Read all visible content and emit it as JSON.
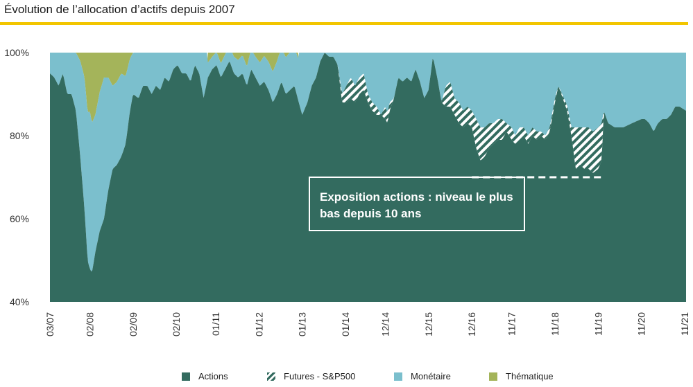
{
  "title": "Évolution de l’allocation d’actifs depuis 2007",
  "colors": {
    "accent_rule": "#f2c500",
    "actions": "#336b5f",
    "monetaire": "#7bbfcd",
    "thematique": "#a4b45a",
    "futures_stripe": "#336b5f",
    "annotation_line": "#ffffff"
  },
  "annotation": {
    "text": "Exposition actions : niveau le plus bas depuis 10 ans",
    "dashed_level": 70
  },
  "legend": [
    {
      "label": "Actions",
      "pattern": "solid",
      "color_key": "actions"
    },
    {
      "label": "Futures - S&P500",
      "pattern": "hatch",
      "color_key": "futures_stripe"
    },
    {
      "label": "Monétaire",
      "pattern": "solid",
      "color_key": "monetaire"
    },
    {
      "label": "Thématique",
      "pattern": "solid",
      "color_key": "thematique"
    }
  ],
  "chart_data": {
    "type": "area",
    "stacked": true,
    "title": "Évolution de l’allocation d’actifs depuis 2007",
    "ylim": [
      40,
      100
    ],
    "yticks": [
      "40%",
      "60%",
      "80%",
      "100%"
    ],
    "ytick_values": [
      40,
      60,
      80,
      100
    ],
    "xtick_labels": [
      "03/07",
      "02/08",
      "02/09",
      "02/10",
      "01/11",
      "01/12",
      "01/13",
      "01/14",
      "12/14",
      "12/15",
      "12/16",
      "11/17",
      "11/18",
      "11/19",
      "11/20",
      "11/21"
    ],
    "xtick_t": [
      0.25,
      1.17,
      2.17,
      3.17,
      4.08,
      5.08,
      6.08,
      7.08,
      8.0,
      9.0,
      10.0,
      10.92,
      11.92,
      12.92,
      13.92,
      14.92
    ],
    "t_range": [
      0.25,
      14.95
    ],
    "t_unit": "years since 2007",
    "grid": false,
    "legend_position": "bottom",
    "series": [
      {
        "name": "Actions",
        "points": [
          [
            0.25,
            95
          ],
          [
            0.35,
            94
          ],
          [
            0.45,
            92
          ],
          [
            0.55,
            95
          ],
          [
            0.65,
            90
          ],
          [
            0.75,
            90
          ],
          [
            0.85,
            86
          ],
          [
            0.95,
            75
          ],
          [
            1.05,
            62
          ],
          [
            1.12,
            50
          ],
          [
            1.17,
            48
          ],
          [
            1.22,
            47
          ],
          [
            1.3,
            52
          ],
          [
            1.4,
            57
          ],
          [
            1.5,
            60
          ],
          [
            1.6,
            67
          ],
          [
            1.7,
            72
          ],
          [
            1.8,
            73
          ],
          [
            1.9,
            75
          ],
          [
            2.0,
            78
          ],
          [
            2.1,
            86
          ],
          [
            2.17,
            90
          ],
          [
            2.3,
            89
          ],
          [
            2.4,
            92
          ],
          [
            2.5,
            92
          ],
          [
            2.6,
            90
          ],
          [
            2.7,
            92
          ],
          [
            2.8,
            91
          ],
          [
            2.9,
            94
          ],
          [
            3.0,
            93
          ],
          [
            3.1,
            96
          ],
          [
            3.2,
            97
          ],
          [
            3.3,
            95
          ],
          [
            3.4,
            95
          ],
          [
            3.5,
            93
          ],
          [
            3.6,
            97
          ],
          [
            3.7,
            95
          ],
          [
            3.8,
            89
          ],
          [
            3.9,
            94
          ],
          [
            4.0,
            96
          ],
          [
            4.1,
            97
          ],
          [
            4.2,
            94
          ],
          [
            4.3,
            96
          ],
          [
            4.4,
            98
          ],
          [
            4.5,
            95
          ],
          [
            4.6,
            94
          ],
          [
            4.7,
            95
          ],
          [
            4.8,
            92
          ],
          [
            4.9,
            96
          ],
          [
            5.0,
            94
          ],
          [
            5.1,
            92
          ],
          [
            5.2,
            93
          ],
          [
            5.3,
            91
          ],
          [
            5.4,
            88
          ],
          [
            5.5,
            90
          ],
          [
            5.6,
            93
          ],
          [
            5.7,
            90
          ],
          [
            5.8,
            91
          ],
          [
            5.9,
            92
          ],
          [
            6.0,
            88
          ],
          [
            6.08,
            85
          ],
          [
            6.2,
            88
          ],
          [
            6.3,
            92
          ],
          [
            6.4,
            94
          ],
          [
            6.5,
            98
          ],
          [
            6.6,
            100
          ],
          [
            6.7,
            99
          ],
          [
            6.8,
            99
          ],
          [
            6.9,
            97
          ],
          [
            7.0,
            88
          ],
          [
            7.1,
            88
          ],
          [
            7.2,
            89
          ],
          [
            7.3,
            88
          ],
          [
            7.4,
            90
          ],
          [
            7.5,
            91
          ],
          [
            7.6,
            88
          ],
          [
            7.7,
            86
          ],
          [
            7.8,
            85
          ],
          [
            7.9,
            85
          ],
          [
            8.0,
            84
          ],
          [
            8.05,
            83
          ],
          [
            8.1,
            86
          ],
          [
            8.2,
            89
          ],
          [
            8.3,
            94
          ],
          [
            8.4,
            93
          ],
          [
            8.5,
            94
          ],
          [
            8.6,
            93
          ],
          [
            8.7,
            96
          ],
          [
            8.8,
            93
          ],
          [
            8.9,
            89
          ],
          [
            9.0,
            91
          ],
          [
            9.1,
            99
          ],
          [
            9.2,
            94
          ],
          [
            9.3,
            88
          ],
          [
            9.4,
            87
          ],
          [
            9.5,
            87
          ],
          [
            9.6,
            85
          ],
          [
            9.7,
            83
          ],
          [
            9.8,
            82
          ],
          [
            9.9,
            83
          ],
          [
            10.0,
            82
          ],
          [
            10.1,
            77
          ],
          [
            10.2,
            74
          ],
          [
            10.3,
            75
          ],
          [
            10.4,
            77
          ],
          [
            10.5,
            78
          ],
          [
            10.6,
            79
          ],
          [
            10.7,
            79
          ],
          [
            10.8,
            81
          ],
          [
            10.92,
            79
          ],
          [
            11.0,
            78
          ],
          [
            11.1,
            79
          ],
          [
            11.2,
            80
          ],
          [
            11.3,
            78
          ],
          [
            11.4,
            80
          ],
          [
            11.5,
            79
          ],
          [
            11.6,
            80
          ],
          [
            11.7,
            79
          ],
          [
            11.8,
            81
          ],
          [
            11.92,
            88
          ],
          [
            12.0,
            92
          ],
          [
            12.1,
            89
          ],
          [
            12.2,
            86
          ],
          [
            12.3,
            80
          ],
          [
            12.4,
            72
          ],
          [
            12.5,
            73
          ],
          [
            12.6,
            72
          ],
          [
            12.7,
            72
          ],
          [
            12.8,
            71
          ],
          [
            12.92,
            72
          ],
          [
            13.0,
            74
          ],
          [
            13.05,
            86
          ],
          [
            13.15,
            83
          ],
          [
            13.3,
            82
          ],
          [
            13.5,
            82
          ],
          [
            13.7,
            83
          ],
          [
            13.92,
            84
          ],
          [
            14.0,
            84
          ],
          [
            14.1,
            83
          ],
          [
            14.2,
            81
          ],
          [
            14.3,
            83
          ],
          [
            14.4,
            84
          ],
          [
            14.5,
            84
          ],
          [
            14.6,
            85
          ],
          [
            14.7,
            87
          ],
          [
            14.8,
            87
          ],
          [
            14.95,
            86
          ]
        ]
      },
      {
        "name": "Futures - S&P500",
        "points": [
          [
            6.9,
            0
          ],
          [
            7.0,
            2
          ],
          [
            7.1,
            4
          ],
          [
            7.2,
            5
          ],
          [
            7.3,
            4
          ],
          [
            7.4,
            4
          ],
          [
            7.5,
            4
          ],
          [
            7.6,
            2
          ],
          [
            7.7,
            2
          ],
          [
            7.8,
            2
          ],
          [
            7.9,
            0
          ],
          [
            8.0,
            3
          ],
          [
            8.1,
            2
          ],
          [
            8.2,
            0
          ],
          [
            9.3,
            0
          ],
          [
            9.4,
            5
          ],
          [
            9.5,
            6
          ],
          [
            9.6,
            4
          ],
          [
            9.7,
            5
          ],
          [
            9.8,
            4
          ],
          [
            9.9,
            4
          ],
          [
            10.0,
            4
          ],
          [
            10.1,
            7
          ],
          [
            10.2,
            8
          ],
          [
            10.3,
            7
          ],
          [
            10.4,
            6
          ],
          [
            10.5,
            5
          ],
          [
            10.6,
            5
          ],
          [
            10.7,
            5
          ],
          [
            10.8,
            2
          ],
          [
            10.92,
            3
          ],
          [
            11.0,
            2
          ],
          [
            11.1,
            3
          ],
          [
            11.2,
            2
          ],
          [
            11.3,
            2
          ],
          [
            11.4,
            2
          ],
          [
            11.5,
            2
          ],
          [
            11.6,
            1
          ],
          [
            11.7,
            1
          ],
          [
            11.8,
            1
          ],
          [
            11.92,
            1
          ],
          [
            12.0,
            0
          ],
          [
            12.3,
            2
          ],
          [
            12.4,
            10
          ],
          [
            12.5,
            9
          ],
          [
            12.6,
            10
          ],
          [
            12.7,
            10
          ],
          [
            12.8,
            10
          ],
          [
            12.92,
            10
          ],
          [
            13.0,
            9
          ],
          [
            13.05,
            0
          ]
        ]
      },
      {
        "name": "Monétaire",
        "points": [
          [
            0.25,
            5
          ],
          [
            0.45,
            8
          ],
          [
            0.65,
            10
          ],
          [
            0.85,
            14
          ],
          [
            1.05,
            32
          ],
          [
            1.17,
            38
          ],
          [
            1.3,
            33
          ],
          [
            1.5,
            34
          ],
          [
            1.7,
            20
          ],
          [
            1.9,
            20
          ],
          [
            2.17,
            10
          ],
          [
            2.5,
            9
          ],
          [
            3.0,
            7
          ],
          [
            3.5,
            6
          ],
          [
            4.0,
            3
          ],
          [
            4.5,
            4
          ],
          [
            5.0,
            5
          ],
          [
            5.5,
            8
          ],
          [
            6.0,
            10
          ],
          [
            6.5,
            1
          ],
          [
            6.6,
            0
          ],
          [
            7.0,
            10
          ],
          [
            7.5,
            5
          ],
          [
            8.0,
            13
          ],
          [
            8.5,
            6
          ],
          [
            9.0,
            9
          ],
          [
            9.1,
            1
          ],
          [
            9.3,
            12
          ],
          [
            9.5,
            7
          ],
          [
            10.0,
            14
          ],
          [
            10.5,
            17
          ],
          [
            11.0,
            20
          ],
          [
            11.5,
            20
          ],
          [
            11.92,
            11
          ],
          [
            12.0,
            8
          ],
          [
            12.3,
            18
          ],
          [
            12.6,
            18
          ],
          [
            12.92,
            18
          ],
          [
            13.05,
            14
          ],
          [
            13.5,
            18
          ],
          [
            14.0,
            16
          ],
          [
            14.5,
            16
          ],
          [
            14.95,
            14
          ]
        ]
      },
      {
        "name": "Thématique",
        "points": [
          [
            0.25,
            0
          ],
          [
            0.85,
            0
          ],
          [
            0.95,
            6
          ],
          [
            1.05,
            6
          ],
          [
            1.3,
            15
          ],
          [
            1.5,
            10
          ],
          [
            1.6,
            13
          ],
          [
            1.7,
            8
          ],
          [
            1.8,
            6
          ],
          [
            1.9,
            5
          ],
          [
            2.0,
            2
          ],
          [
            2.17,
            0
          ],
          [
            3.9,
            0
          ],
          [
            4.0,
            1
          ],
          [
            4.3,
            0
          ],
          [
            4.7,
            3
          ],
          [
            4.8,
            4
          ],
          [
            4.9,
            5
          ],
          [
            5.0,
            4
          ],
          [
            5.1,
            5
          ],
          [
            5.2,
            3
          ],
          [
            5.3,
            0
          ],
          [
            5.4,
            2
          ],
          [
            5.5,
            3
          ],
          [
            5.6,
            2
          ],
          [
            5.7,
            3
          ],
          [
            5.8,
            3
          ],
          [
            5.9,
            2
          ],
          [
            6.0,
            0
          ]
        ]
      }
    ]
  }
}
